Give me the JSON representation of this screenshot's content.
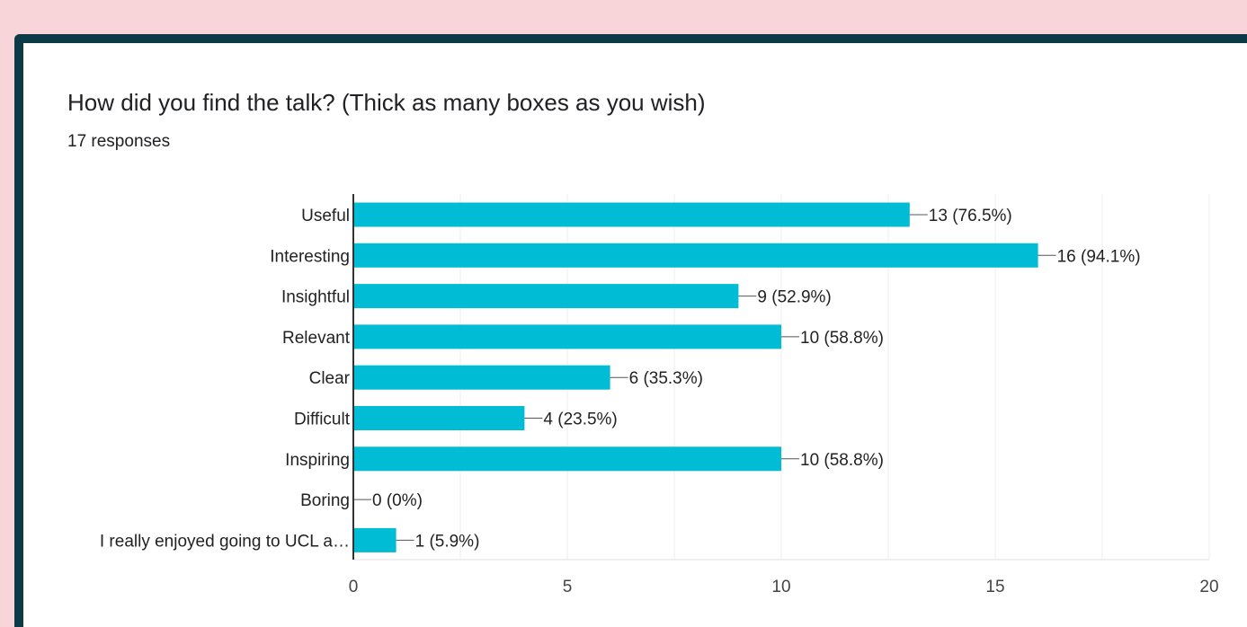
{
  "question": {
    "title": "How did you find the talk? (Thick as many boxes as you wish)",
    "responses": "17 responses"
  },
  "colors": {
    "bar": "#00bcd4",
    "card_border": "#0c3b47",
    "background": "#f8d5d8"
  },
  "chart_data": {
    "type": "bar",
    "orientation": "horizontal",
    "categories": [
      "Useful",
      "Interesting",
      "Insightful",
      "Relevant",
      "Clear",
      "Difficult",
      "Inspiring",
      "Boring",
      "I really enjoyed going to UCL a…"
    ],
    "values": [
      13,
      16,
      9,
      10,
      6,
      4,
      10,
      0,
      1
    ],
    "data_labels": [
      "13 (76.5%)",
      "16 (94.1%)",
      "9 (52.9%)",
      "10 (58.8%)",
      "6 (35.3%)",
      "4 (23.5%)",
      "10 (58.8%)",
      "0 (0%)",
      "1 (5.9%)"
    ],
    "xlim": [
      0,
      20
    ],
    "xticks": [
      0,
      5,
      10,
      15,
      20
    ],
    "xtick_labels": [
      "0",
      "5",
      "10",
      "15",
      "20"
    ],
    "grid": true,
    "legend": "none"
  }
}
